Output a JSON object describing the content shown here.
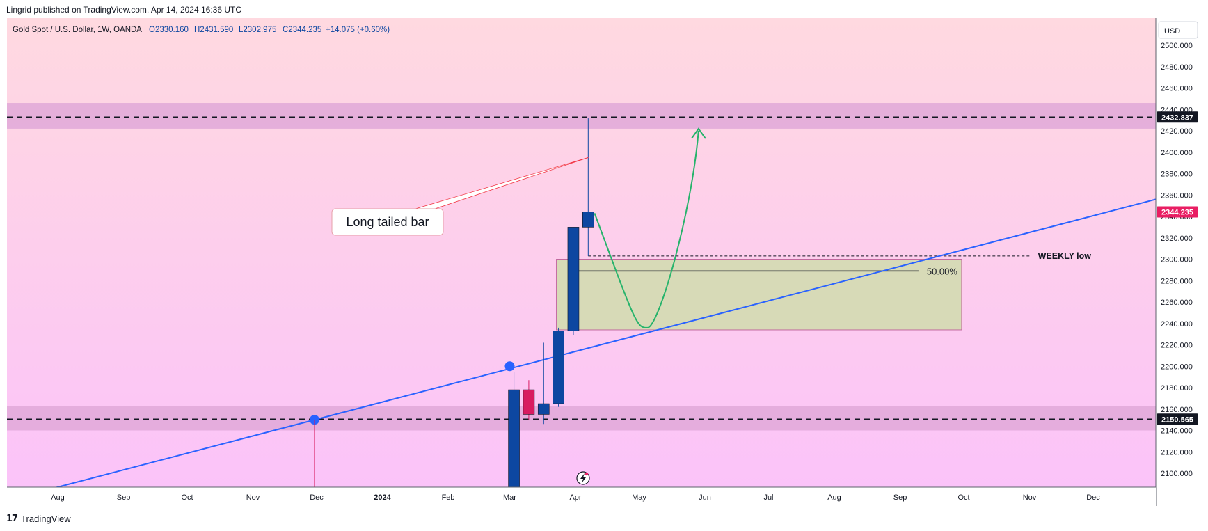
{
  "header": {
    "published": "Lingrid published on TradingView.com, Apr 14, 2024 16:36 UTC"
  },
  "legend": {
    "symbol": "Gold Spot / U.S. Dollar, 1W, OANDA",
    "open": "O2330.160",
    "high": "H2431.590",
    "low": "L2302.975",
    "close": "C2344.235",
    "change": "+14.075 (+0.60%)"
  },
  "currency_button": "USD",
  "footer": {
    "brand": "TradingView"
  },
  "colors": {
    "bg_top": "#ffd9e0",
    "bg_bottom": "#fbc3f9",
    "zone": "#e0a8d8",
    "rect": "#d7dab7",
    "up_candle": "#0d47a1",
    "down_candle": "#d81b60",
    "trendline": "#2962ff",
    "projection": "#26b36b",
    "price_tag_current": "#e91e63",
    "price_tag_level": "#131722"
  },
  "chart_data": {
    "type": "candlestick",
    "title": "Gold Spot / U.S. Dollar, 1W, OANDA",
    "y_ticks": [
      2100,
      2120,
      2140,
      2160,
      2180,
      2200,
      2220,
      2240,
      2260,
      2280,
      2300,
      2320,
      2340,
      2360,
      2380,
      2400,
      2420,
      2440,
      2460,
      2480,
      2500
    ],
    "x_ticks": [
      {
        "label": "Aug",
        "date": "2023-08-01"
      },
      {
        "label": "Sep",
        "date": "2023-09-01"
      },
      {
        "label": "Oct",
        "date": "2023-10-01"
      },
      {
        "label": "Nov",
        "date": "2023-11-01"
      },
      {
        "label": "Dec",
        "date": "2023-12-01"
      },
      {
        "label": "2024",
        "date": "2024-01-01"
      },
      {
        "label": "Feb",
        "date": "2024-02-01"
      },
      {
        "label": "Mar",
        "date": "2024-03-01"
      },
      {
        "label": "Apr",
        "date": "2024-04-01"
      },
      {
        "label": "May",
        "date": "2024-05-01"
      },
      {
        "label": "Jun",
        "date": "2024-06-01"
      },
      {
        "label": "Jul",
        "date": "2024-07-01"
      },
      {
        "label": "Aug",
        "date": "2024-08-01"
      },
      {
        "label": "Sep",
        "date": "2024-09-01"
      },
      {
        "label": "Oct",
        "date": "2024-10-01"
      },
      {
        "label": "Nov",
        "date": "2024-11-01"
      },
      {
        "label": "Dec",
        "date": "2024-12-01"
      }
    ],
    "candles": [
      {
        "date": "2024-03-03",
        "open": 2083,
        "high": 2195,
        "low": 2077,
        "close": 2178
      },
      {
        "date": "2024-03-10",
        "open": 2178,
        "high": 2187,
        "low": 2150,
        "close": 2155
      },
      {
        "date": "2024-03-17",
        "open": 2155,
        "high": 2222,
        "low": 2146,
        "close": 2165
      },
      {
        "date": "2024-03-24",
        "open": 2165,
        "high": 2236,
        "low": 2162,
        "close": 2233
      },
      {
        "date": "2024-03-31",
        "open": 2233,
        "high": 2330,
        "low": 2229,
        "close": 2330
      },
      {
        "date": "2024-04-07",
        "open": 2330,
        "high": 2431.59,
        "low": 2302.975,
        "close": 2344.235
      }
    ],
    "levels": [
      {
        "value": 2432.837,
        "label": "2432.837",
        "zone": [
          2422,
          2446
        ]
      },
      {
        "value": 2150.565,
        "label": "2150.565",
        "zone": [
          2140,
          2163
        ]
      }
    ],
    "current_price": {
      "value": 2344.235,
      "label": "2344.235"
    },
    "weekly_low": {
      "value": 2302.975,
      "label": "WEEKLY low",
      "from": "2024-04-07",
      "to": "2024-11-03"
    },
    "trendline": {
      "from": {
        "date": "2023-07-30",
        "value": 2086
      },
      "to": {
        "date": "2024-12-25",
        "value": 2356
      }
    },
    "trend_points": [
      {
        "date": "2023-11-30",
        "value": 2150
      },
      {
        "date": "2024-03-01",
        "value": 2200
      }
    ],
    "annotations": [
      {
        "text": "Long tailed bar",
        "date": "2024-04-07",
        "value": 2395
      }
    ],
    "fib_rect": {
      "from": "2024-03-23",
      "to": "2024-09-30",
      "top": 2300,
      "bottom": 2234,
      "mid": 2289,
      "label": "50.00%"
    },
    "projection": [
      {
        "date": "2024-04-10",
        "value": 2343
      },
      {
        "date": "2024-04-30",
        "value": 2236
      },
      {
        "date": "2024-05-10",
        "value": 2236
      },
      {
        "date": "2024-05-29",
        "value": 2420
      }
    ]
  }
}
